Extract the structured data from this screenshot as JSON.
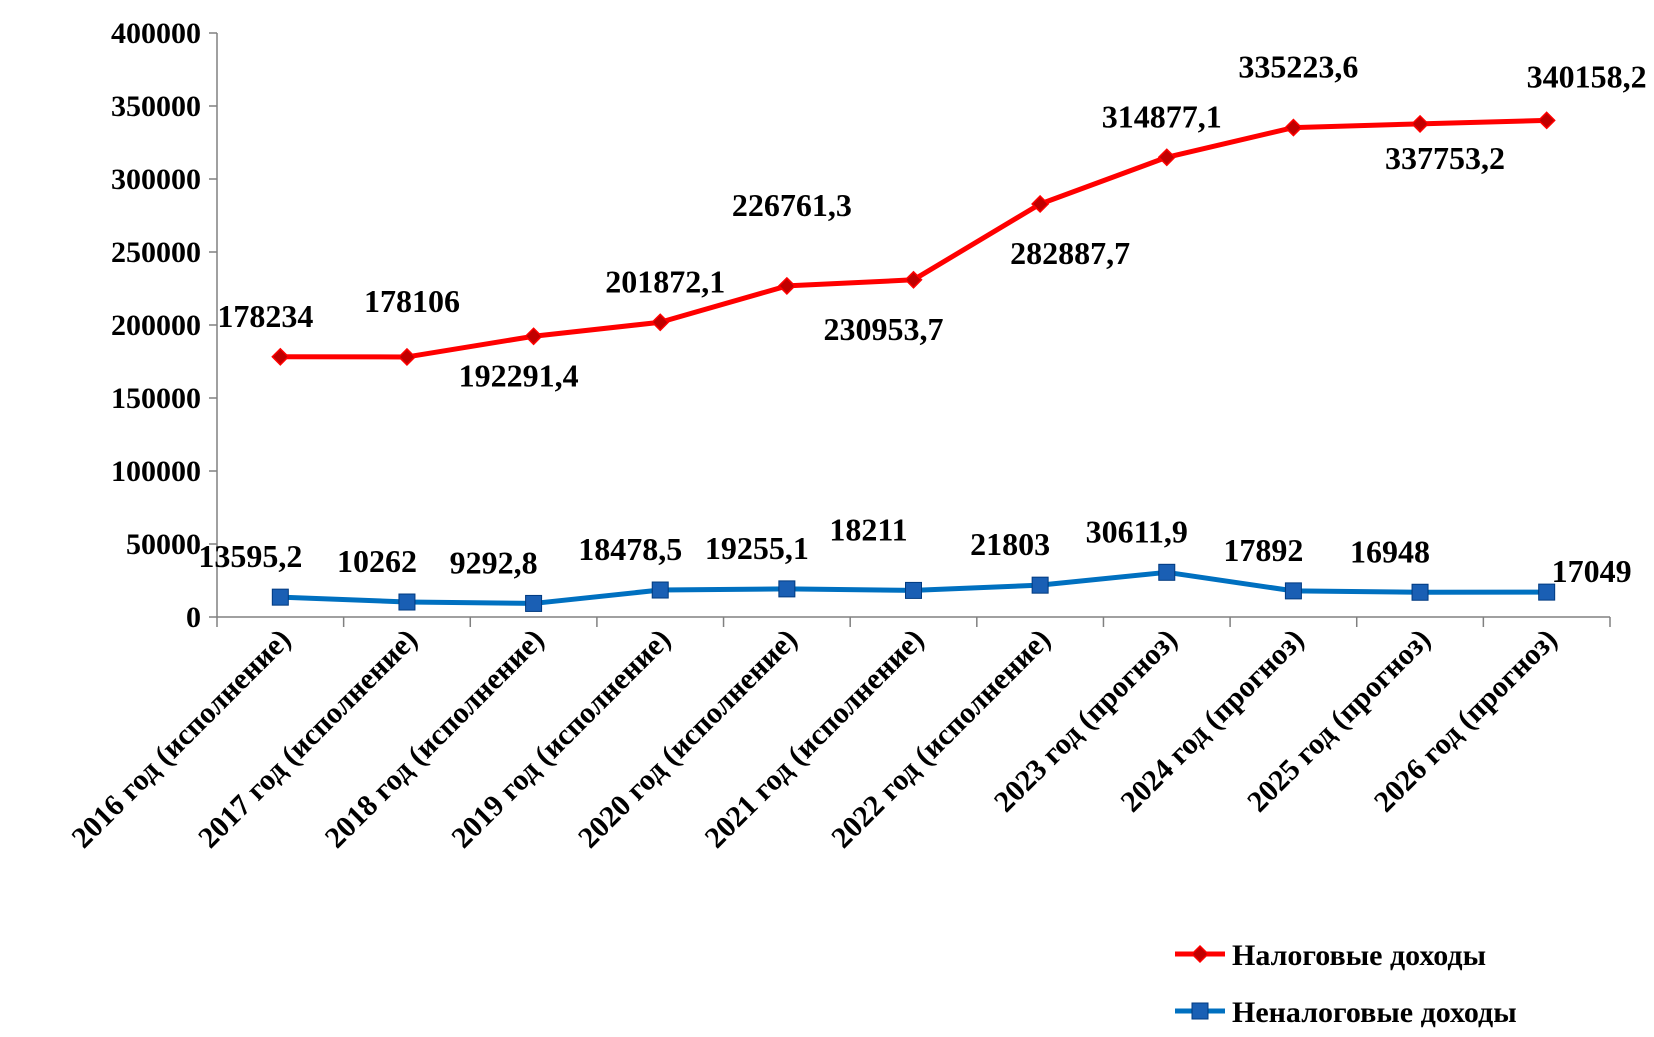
{
  "chart_data": {
    "type": "line",
    "categories": [
      "2016 год (исполнение)",
      "2017 год (исполнение)",
      "2018 год (исполнение)",
      "2019 год (исполнение)",
      "2020 год (исполнение)",
      "2021 год (исполнение)",
      "2022 год (исполнение)",
      "2023 год (прогноз)",
      "2024 год (прогноз)",
      "2025 год (прогноз)",
      "2026 год (прогноз)"
    ],
    "series": [
      {
        "name": "Налоговые доходы",
        "color": "#ff0000",
        "marker": "diamond",
        "values": [
          178234,
          178106,
          192291.4,
          201872.1,
          226761.3,
          230953.7,
          282887.7,
          314877.1,
          335223.6,
          337753.2,
          340158.2
        ],
        "labels": [
          "178234",
          "178106",
          "192291,4",
          "201872,1",
          "226761,3",
          "230953,7",
          "282887,7",
          "314877,1",
          "335223,6",
          "337753,2",
          "340158,2"
        ]
      },
      {
        "name": "Неналоговые доходы",
        "color": "#0070c0",
        "marker": "square",
        "values": [
          13595.2,
          10262,
          9292.8,
          18478.5,
          19255.1,
          18211,
          21803,
          30611.9,
          17892,
          16948,
          17049
        ],
        "labels": [
          "13595,2",
          "10262",
          "9292,8",
          "18478,5",
          "19255,1",
          "18211",
          "21803",
          "30611,9",
          "17892",
          "16948",
          "17049"
        ]
      }
    ],
    "y_ticks": [
      "0",
      "50000",
      "100000",
      "150000",
      "200000",
      "250000",
      "300000",
      "350000",
      "400000"
    ],
    "ylim": [
      0,
      400000
    ],
    "grid": false,
    "legend_position": "bottom-right"
  }
}
